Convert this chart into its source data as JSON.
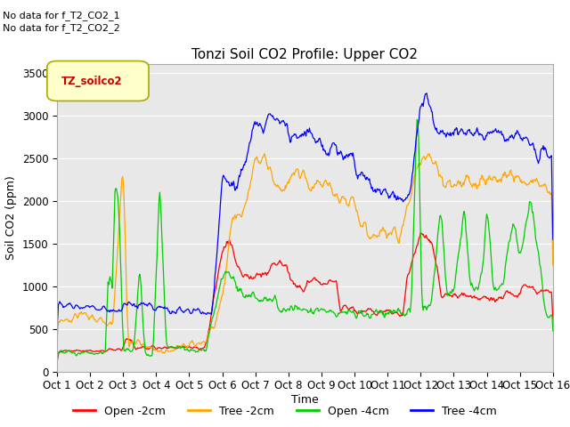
{
  "title": "Tonzi Soil CO2 Profile: Upper CO2",
  "ylabel": "Soil CO2 (ppm)",
  "xlabel": "Time",
  "ylim": [
    0,
    3600
  ],
  "yticks": [
    0,
    500,
    1000,
    1500,
    2000,
    2500,
    3000,
    3500
  ],
  "xtick_labels": [
    "Oct 1",
    "Oct 2",
    "Oct 3",
    "Oct 4",
    "Oct 5",
    "Oct 6",
    "Oct 7",
    "Oct 8",
    "Oct 9",
    "Oct 10",
    "Oct 11",
    "Oct 12",
    "Oct 13",
    "Oct 14",
    "Oct 15",
    "Oct 16"
  ],
  "no_data_text": [
    "No data for f_T2_CO2_1",
    "No data for f_T2_CO2_2"
  ],
  "legend_label": "TZ_soilco2",
  "legend_entries": [
    "Open -2cm",
    "Tree -2cm",
    "Open -4cm",
    "Tree -4cm"
  ],
  "legend_colors": [
    "#ff0000",
    "#ffa500",
    "#00cc00",
    "#0000ff"
  ],
  "plot_bg": "#e8e8e8",
  "title_fontsize": 11,
  "axis_label_fontsize": 9,
  "tick_fontsize": 8.5,
  "nodata_fontsize": 8,
  "legend_fontsize": 9
}
